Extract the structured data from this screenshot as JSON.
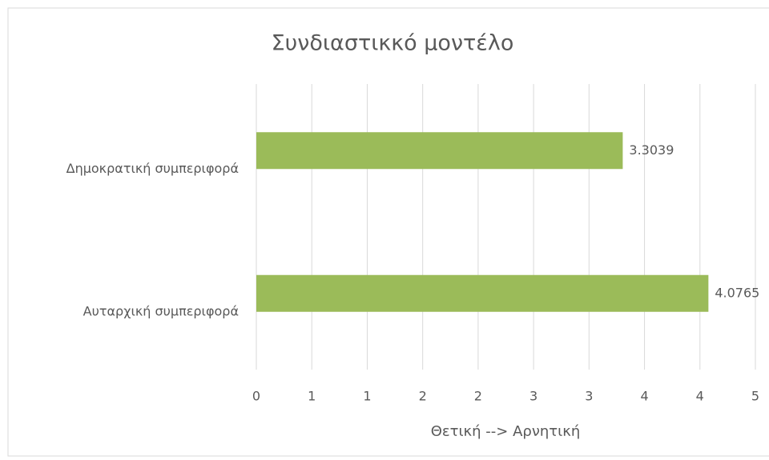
{
  "chart_data": {
    "type": "bar",
    "orientation": "horizontal",
    "title": "Συνδιαστικκό μοντέλο",
    "categories": [
      "Δημοκρατική συμπεριφορά",
      "Αυταρχική συμπεριφορά"
    ],
    "values": [
      3.3039,
      4.0765
    ],
    "color": "#9bbb59",
    "xlabel": "Θετική --> Αρνητική",
    "xlim": [
      0,
      4.5
    ],
    "xticks": [
      0,
      {
        "value": 0.5,
        "label": "1"
      },
      1,
      {
        "value": 1.5,
        "label": "2"
      },
      2,
      {
        "value": 2.5,
        "label": "3"
      },
      3,
      {
        "value": 3.5,
        "label": "4"
      },
      4,
      {
        "value": 4.5,
        "label": "5"
      }
    ],
    "grid": true
  }
}
